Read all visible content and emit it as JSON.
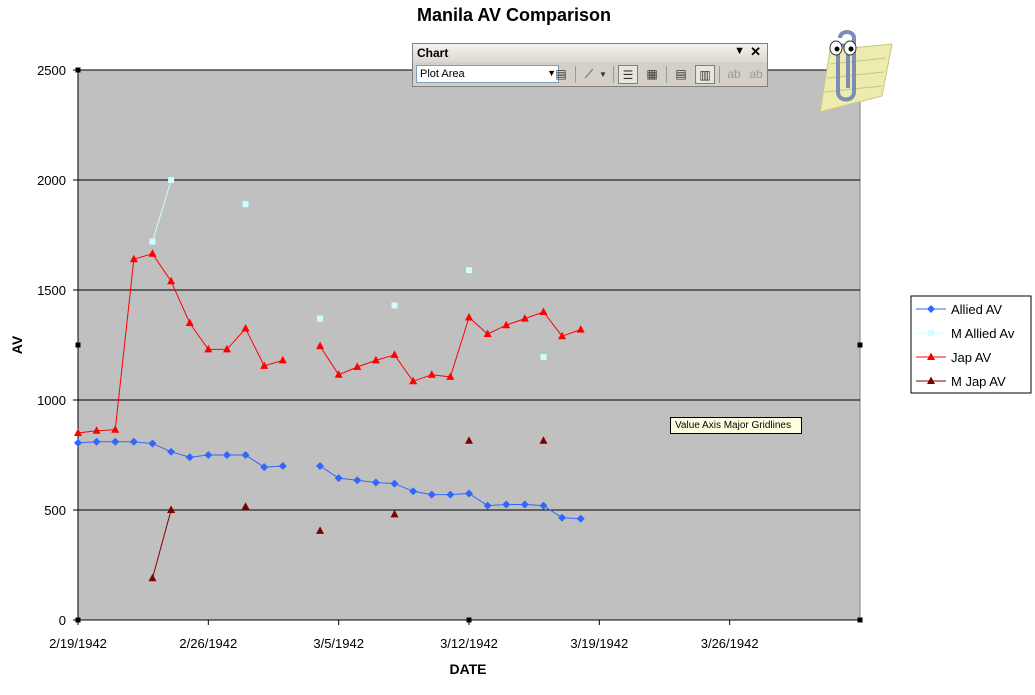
{
  "chart_data": {
    "type": "line",
    "title": "Manila AV Comparison",
    "xlabel": "DATE",
    "ylabel": "AV",
    "x_axis": {
      "type": "date",
      "min": "1942-02-19",
      "max": "1942-04-02",
      "ticks": [
        "2/19/1942",
        "2/26/1942",
        "3/5/1942",
        "3/12/1942",
        "3/19/1942",
        "3/26/1942"
      ]
    },
    "y_axis": {
      "min": 0,
      "max": 2500,
      "ticks": [
        0,
        500,
        1000,
        1500,
        2000,
        2500
      ]
    },
    "gridlines": "value-axis-major",
    "plot_area_color": "#c0c0c0",
    "legend_position": "right",
    "series": [
      {
        "name": "Allied AV",
        "color": "#3366ff",
        "marker": "diamond",
        "line": true,
        "points": [
          [
            "1942-02-19",
            805
          ],
          [
            "1942-02-20",
            810
          ],
          [
            "1942-02-21",
            810
          ],
          [
            "1942-02-22",
            810
          ],
          [
            "1942-02-23",
            802
          ],
          [
            "1942-02-24",
            765
          ],
          [
            "1942-02-25",
            740
          ],
          [
            "1942-02-26",
            750
          ],
          [
            "1942-02-27",
            750
          ],
          [
            "1942-02-28",
            750
          ],
          [
            "1942-03-01",
            695
          ],
          [
            "1942-03-02",
            700
          ],
          null,
          [
            "1942-03-04",
            700
          ],
          [
            "1942-03-05",
            645
          ],
          [
            "1942-03-06",
            635
          ],
          [
            "1942-03-07",
            625
          ],
          [
            "1942-03-08",
            620
          ],
          [
            "1942-03-09",
            585
          ],
          [
            "1942-03-10",
            570
          ],
          [
            "1942-03-11",
            570
          ],
          [
            "1942-03-12",
            575
          ],
          [
            "1942-03-13",
            520
          ],
          [
            "1942-03-14",
            525
          ],
          [
            "1942-03-15",
            525
          ],
          [
            "1942-03-16",
            520
          ],
          [
            "1942-03-17",
            465
          ],
          [
            "1942-03-18",
            460
          ]
        ]
      },
      {
        "name": "M Allied Av",
        "color": "#ccffff",
        "marker": "square",
        "line": true,
        "points": [
          [
            "1942-02-23",
            1720
          ],
          [
            "1942-02-24",
            2000
          ],
          null,
          [
            "1942-02-28",
            1890
          ],
          null,
          [
            "1942-03-04",
            1370
          ],
          null,
          [
            "1942-03-08",
            1430
          ],
          null,
          [
            "1942-03-12",
            1590
          ],
          null,
          [
            "1942-03-16",
            1195
          ]
        ]
      },
      {
        "name": "Jap AV",
        "color": "#ff0000",
        "marker": "triangle",
        "line": true,
        "points": [
          [
            "1942-02-19",
            850
          ],
          [
            "1942-02-20",
            860
          ],
          [
            "1942-02-21",
            865
          ],
          [
            "1942-02-22",
            1640
          ],
          [
            "1942-02-23",
            1665
          ],
          [
            "1942-02-24",
            1540
          ],
          [
            "1942-02-25",
            1350
          ],
          [
            "1942-02-26",
            1230
          ],
          [
            "1942-02-27",
            1230
          ],
          [
            "1942-02-28",
            1325
          ],
          [
            "1942-03-01",
            1155
          ],
          [
            "1942-03-02",
            1180
          ],
          null,
          [
            "1942-03-04",
            1245
          ],
          [
            "1942-03-05",
            1115
          ],
          [
            "1942-03-06",
            1150
          ],
          [
            "1942-03-07",
            1180
          ],
          [
            "1942-03-08",
            1205
          ],
          [
            "1942-03-09",
            1085
          ],
          [
            "1942-03-10",
            1115
          ],
          [
            "1942-03-11",
            1105
          ],
          [
            "1942-03-12",
            1375
          ],
          [
            "1942-03-13",
            1300
          ],
          [
            "1942-03-14",
            1340
          ],
          [
            "1942-03-15",
            1370
          ],
          [
            "1942-03-16",
            1400
          ],
          [
            "1942-03-17",
            1290
          ],
          [
            "1942-03-18",
            1320
          ]
        ]
      },
      {
        "name": "M Jap AV",
        "color": "#800000",
        "marker": "triangle",
        "line": true,
        "points": [
          [
            "1942-02-23",
            190
          ],
          [
            "1942-02-24",
            500
          ],
          null,
          [
            "1942-02-28",
            515
          ],
          null,
          [
            "1942-03-04",
            405
          ],
          null,
          [
            "1942-03-08",
            480
          ],
          null,
          [
            "1942-03-12",
            815
          ],
          null,
          [
            "1942-03-16",
            815
          ]
        ]
      }
    ]
  },
  "toolbar": {
    "title": "Chart",
    "element_select": "Plot Area",
    "buttons": [
      "format-plot-area",
      "chart-type",
      "legend",
      "data-table",
      "by-row",
      "by-column",
      "angle-text-downward",
      "angle-text-upward"
    ]
  },
  "tooltip": {
    "text": "Value Axis Major Gridlines"
  },
  "assistant": {
    "icon": "office-assistant-clippy-icon"
  }
}
